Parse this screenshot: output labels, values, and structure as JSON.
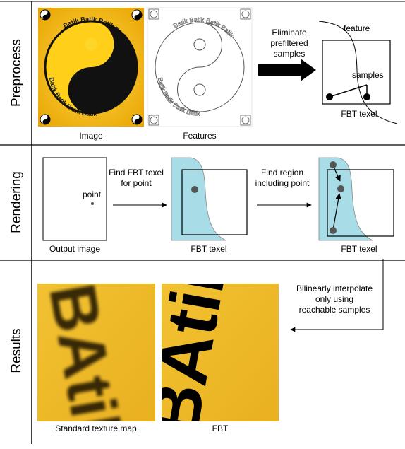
{
  "rows": {
    "preprocess": "Preprocess",
    "rendering": "Rendering",
    "results": "Results"
  },
  "preprocess": {
    "image_caption": "Image",
    "features_caption": "Features",
    "eliminate_line1": "Eliminate",
    "eliminate_line2": "prefiltered",
    "eliminate_line3": "samples",
    "feature_label": "feature",
    "samples_label": "samples",
    "texel_caption": "FBT texel",
    "logo_text": "Batik Batik Batik Batik"
  },
  "rendering": {
    "point_label": "point",
    "output_caption": "Output image",
    "find_texel_line1": "Find FBT texel",
    "find_texel_line2": "for point",
    "texel_caption_1": "FBT texel",
    "find_region_line1": "Find region",
    "find_region_line2": "including point",
    "texel_caption_2": "FBT texel"
  },
  "results": {
    "bilinear_line1": "Bilinearly interpolate",
    "bilinear_line2": "only using",
    "bilinear_line3": "reachable samples",
    "standard_caption": "Standard texture map",
    "fbt_caption": "FBT",
    "sample_glyphs": "BAtik"
  },
  "colors": {
    "yellow": "#f5b800",
    "cyan": "#a8dde8",
    "dot": "#555555"
  }
}
